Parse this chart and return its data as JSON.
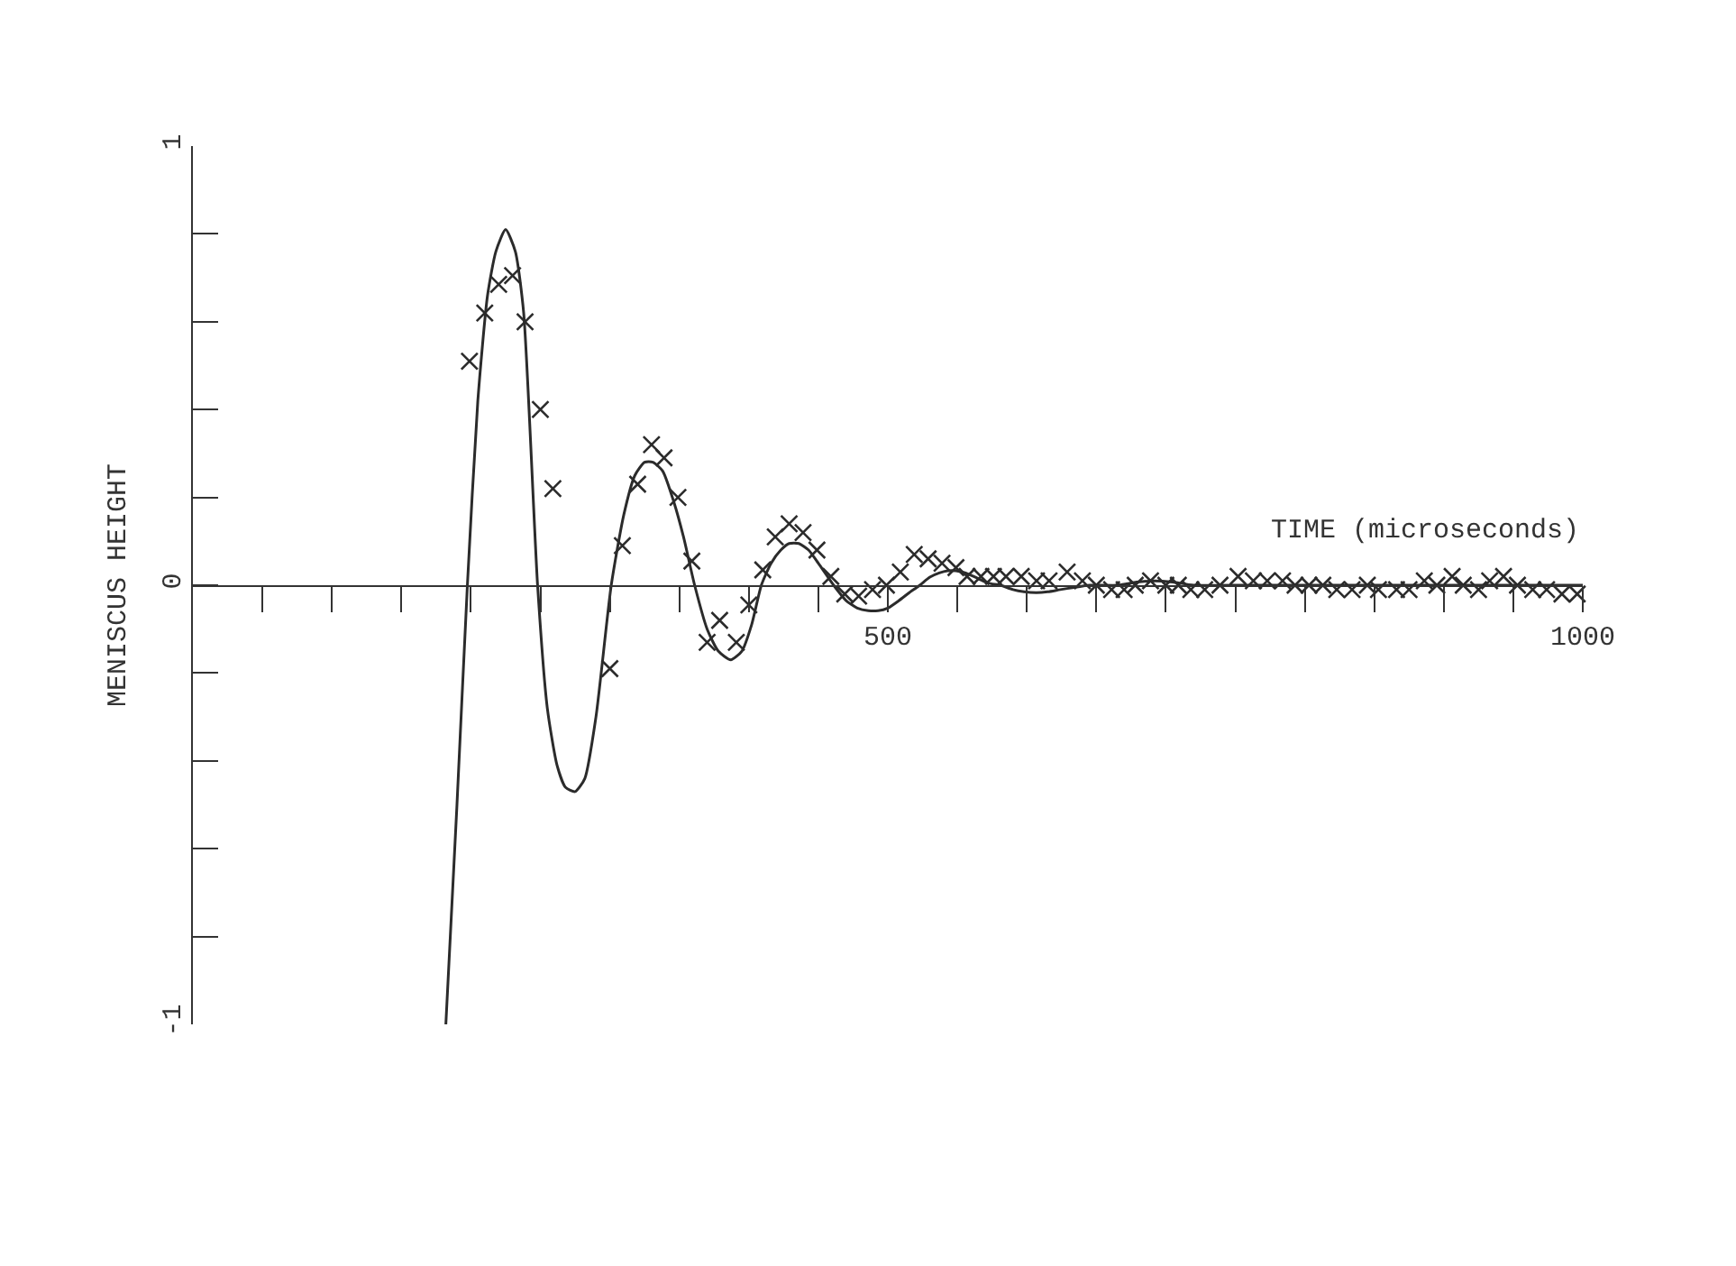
{
  "chart_data": {
    "type": "line",
    "xlabel": "TIME (microseconds)",
    "ylabel": "MENISCUS HEIGHT",
    "xlim": [
      0,
      1000
    ],
    "ylim": [
      -1,
      1
    ],
    "xticks": [
      {
        "value": 50,
        "label": null
      },
      {
        "value": 100,
        "label": null
      },
      {
        "value": 150,
        "label": null
      },
      {
        "value": 200,
        "label": null
      },
      {
        "value": 250,
        "label": null
      },
      {
        "value": 300,
        "label": null
      },
      {
        "value": 350,
        "label": null
      },
      {
        "value": 400,
        "label": null
      },
      {
        "value": 450,
        "label": null
      },
      500,
      {
        "value": 550,
        "label": null
      },
      {
        "value": 600,
        "label": null
      },
      {
        "value": 650,
        "label": null
      },
      {
        "value": 700,
        "label": null
      },
      {
        "value": 750,
        "label": null
      },
      {
        "value": 800,
        "label": null
      },
      {
        "value": 850,
        "label": null
      },
      {
        "value": 900,
        "label": null
      },
      {
        "value": 950,
        "label": null
      },
      1000
    ],
    "yticks": [
      -1,
      {
        "value": -0.8,
        "label": null
      },
      {
        "value": -0.6,
        "label": null
      },
      {
        "value": -0.4,
        "label": null
      },
      {
        "value": -0.2,
        "label": null
      },
      0,
      {
        "value": 0.2,
        "label": null
      },
      {
        "value": 0.4,
        "label": null
      },
      {
        "value": 0.6,
        "label": null
      },
      {
        "value": 0.8,
        "label": null
      },
      1
    ],
    "series": [
      {
        "color": "#2b2b2b",
        "marker": "none",
        "line_style": "solid",
        "x": [
          182,
          190,
          197.5,
          205,
          212,
          218,
          225,
          232,
          238,
          248,
          255,
          262,
          268,
          275,
          282,
          290,
          301,
          310,
          318,
          325,
          331,
          338,
          346,
          353,
          361,
          370,
          378,
          387,
          395,
          402,
          409,
          416,
          423,
          429,
          436,
          443,
          450,
          461,
          470,
          478,
          486,
          493,
          500,
          508,
          515,
          523,
          530,
          537,
          543,
          549,
          556,
          563,
          572,
          581,
          590,
          598,
          607,
          615,
          624,
          634,
          645,
          666,
          679,
          692,
          705,
          720,
          760,
          820,
          880,
          940,
          1000
        ],
        "values": [
          -1,
          -0.5,
          0,
          0.42,
          0.66,
          0.76,
          0.81,
          0.76,
          0.62,
          0,
          -0.28,
          -0.41,
          -0.46,
          -0.47,
          -0.44,
          -0.3,
          0,
          0.16,
          0.25,
          0.28,
          0.28,
          0.26,
          0.19,
          0.11,
          0,
          -0.1,
          -0.15,
          -0.17,
          -0.15,
          -0.09,
          0,
          0.05,
          0.08,
          0.095,
          0.095,
          0.08,
          0.05,
          0,
          -0.035,
          -0.052,
          -0.058,
          -0.058,
          -0.052,
          -0.035,
          -0.018,
          0,
          0.018,
          0.028,
          0.033,
          0.033,
          0.028,
          0.018,
          0.005,
          0,
          -0.01,
          -0.015,
          -0.017,
          -0.015,
          -0.01,
          -0.005,
          0,
          0,
          0.007,
          0.01,
          0.007,
          0,
          0,
          0,
          0,
          0,
          0
        ]
      },
      {
        "type": "scatter",
        "color": "#2b2b2b",
        "marker": "cross",
        "x": [
          199,
          210,
          220,
          230,
          239,
          250,
          259,
          300,
          309,
          320,
          330,
          339,
          349,
          359,
          370,
          379,
          391,
          400,
          410,
          419,
          429,
          439,
          449,
          459,
          469,
          479,
          489,
          499,
          509,
          519,
          529,
          539,
          549,
          557,
          567,
          576,
          585,
          596,
          607,
          616,
          629,
          640,
          650,
          661,
          670,
          678,
          689,
          700,
          709,
          718,
          728,
          739,
          752,
          763,
          773,
          784,
          793,
          803,
          813,
          823,
          834,
          845,
          853,
          866,
          875,
          886,
          895,
          906,
          914,
          925,
          933,
          943,
          953,
          964,
          974,
          985,
          996
        ],
        "values": [
          0.51,
          0.62,
          0.685,
          0.705,
          0.6,
          0.4,
          0.22,
          -0.19,
          0.09,
          0.23,
          0.32,
          0.29,
          0.2,
          0.055,
          -0.13,
          -0.08,
          -0.13,
          -0.045,
          0.035,
          0.11,
          0.14,
          0.12,
          0.08,
          0.02,
          -0.02,
          -0.025,
          -0.01,
          0,
          0.03,
          0.07,
          0.06,
          0.05,
          0.04,
          0.02,
          0.02,
          0.02,
          0.02,
          0.02,
          0.01,
          0.01,
          0.03,
          0.01,
          0,
          -0.01,
          -0.01,
          0,
          0.01,
          0,
          0,
          -0.01,
          -0.01,
          0,
          0.02,
          0.01,
          0.01,
          0.01,
          0,
          0,
          0,
          -0.01,
          -0.01,
          0,
          -0.01,
          -0.01,
          -0.01,
          0.01,
          0,
          0.02,
          0,
          -0.01,
          0.01,
          0.02,
          0,
          -0.01,
          -0.01,
          -0.02,
          -0.02
        ]
      }
    ]
  }
}
